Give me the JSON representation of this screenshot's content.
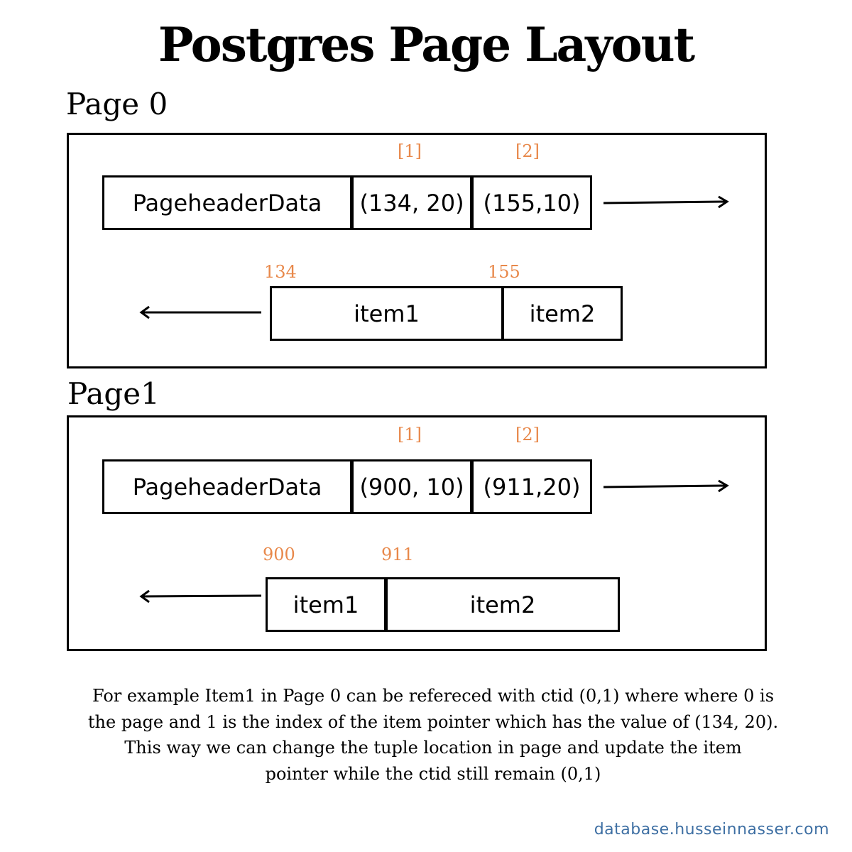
{
  "title": "Postgres Page Layout",
  "pages": [
    {
      "label": "Page 0",
      "header_cell": "PageheaderData",
      "pointers": [
        {
          "index_label": "[1]",
          "value": "(134, 20)"
        },
        {
          "index_label": "[2]",
          "value": "(155,10)"
        }
      ],
      "items": [
        {
          "offset_label": "134",
          "name": "item1"
        },
        {
          "offset_label": "155",
          "name": "item2"
        }
      ]
    },
    {
      "label": "Page1",
      "header_cell": "PageheaderData",
      "pointers": [
        {
          "index_label": "[1]",
          "value": "(900, 10)"
        },
        {
          "index_label": "[2]",
          "value": "(911,20)"
        }
      ],
      "items": [
        {
          "offset_label": "900",
          "name": "item1"
        },
        {
          "offset_label": "911",
          "name": "item2"
        }
      ]
    }
  ],
  "caption_lines": [
    "For example Item1 in Page 0 can be refereced with ctid (0,1) where where 0 is",
    "the page and 1 is the index of the item pointer which has the value of (134, 20).",
    "This way we can change the tuple location in page and update the item",
    "pointer while the ctid still remain (0,1)"
  ],
  "footer": "database.husseinnasser.com",
  "colors": {
    "annotation": "#e8884a",
    "footer": "#3e6fa3",
    "line": "#000000"
  }
}
